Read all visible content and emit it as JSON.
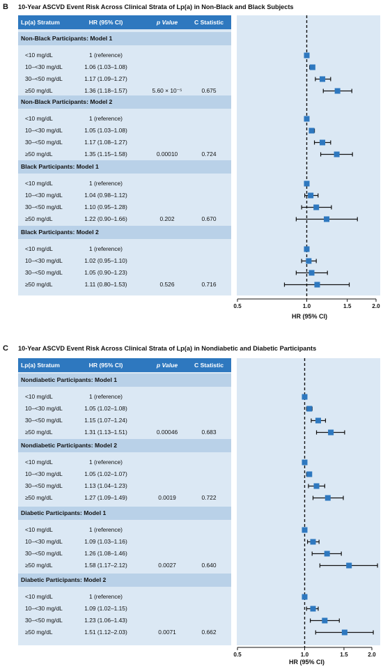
{
  "panels": [
    {
      "letter": "B",
      "title": "10-Year ASCVD Event Risk Across Clinical Strata of Lp(a) in Non-Black and Black Subjects",
      "headers": {
        "stratum": "Lp(a) Stratum",
        "hr": "HR (95% CI)",
        "p": "p Value",
        "c": "C Statistic"
      },
      "groups": [
        {
          "name": "Non-Black Participants: Model 1",
          "rows": [
            {
              "stratum": "<10 mg/dL",
              "hr_text": "1 (reference)",
              "p": "",
              "c": ""
            },
            {
              "stratum": "10–<30 mg/dL",
              "hr_text": "1.06 (1.03–1.08)",
              "p": "",
              "c": ""
            },
            {
              "stratum": "30–<50 mg/dL",
              "hr_text": "1.17 (1.09–1.27)",
              "p": "",
              "c": ""
            },
            {
              "stratum": "≥50 mg/dL",
              "hr_text": "1.36 (1.18–1.57)",
              "p": "5.60 × 10⁻⁵",
              "c": "0.675"
            }
          ]
        },
        {
          "name": "Non-Black Participants: Model 2",
          "rows": [
            {
              "stratum": "<10 mg/dL",
              "hr_text": "1 (reference)",
              "p": "",
              "c": ""
            },
            {
              "stratum": "10–<30 mg/dL",
              "hr_text": "1.05 (1.03–1.08)",
              "p": "",
              "c": ""
            },
            {
              "stratum": "30–<50 mg/dL",
              "hr_text": "1.17 (1.08–1.27)",
              "p": "",
              "c": ""
            },
            {
              "stratum": "≥50 mg/dL",
              "hr_text": "1.35 (1.15–1.58)",
              "p": "0.00010",
              "c": "0.724"
            }
          ]
        },
        {
          "name": "Black Participants: Model 1",
          "rows": [
            {
              "stratum": "<10 mg/dL",
              "hr_text": "1 (reference)",
              "p": "",
              "c": ""
            },
            {
              "stratum": "10–<30 mg/dL",
              "hr_text": "1.04 (0.98–1.12)",
              "p": "",
              "c": ""
            },
            {
              "stratum": "30–<50 mg/dL",
              "hr_text": "1.10 (0.95–1.28)",
              "p": "",
              "c": ""
            },
            {
              "stratum": "≥50 mg/dL",
              "hr_text": "1.22 (0.90–1.66)",
              "p": "0.202",
              "c": "0.670"
            }
          ]
        },
        {
          "name": "Black Participants: Model 2",
          "rows": [
            {
              "stratum": "<10 mg/dL",
              "hr_text": "1 (reference)",
              "p": "",
              "c": ""
            },
            {
              "stratum": "10–<30 mg/dL",
              "hr_text": "1.02 (0.95–1.10)",
              "p": "",
              "c": ""
            },
            {
              "stratum": "30–<50 mg/dL",
              "hr_text": "1.05 (0.90–1.23)",
              "p": "",
              "c": ""
            },
            {
              "stratum": "≥50 mg/dL",
              "hr_text": "1.11 (0.80–1.53)",
              "p": "0.526",
              "c": "0.716"
            }
          ]
        }
      ],
      "x_ticks": [
        "0.5",
        "1.0",
        "1.5",
        "2.0"
      ],
      "x_label": "HR (95% CI)"
    },
    {
      "letter": "C",
      "title": "10-Year ASCVD Event Risk Across Clinical Strata of Lp(a) in Nondiabetic and Diabetic Participants",
      "headers": {
        "stratum": "Lp(a) Stratum",
        "hr": "HR (95% CI)",
        "p": "p Value",
        "c": "C Statistic"
      },
      "groups": [
        {
          "name": "Nondiabetic Participants: Model 1",
          "rows": [
            {
              "stratum": "<10 mg/dL",
              "hr_text": "1 (reference)",
              "p": "",
              "c": ""
            },
            {
              "stratum": "10–<30 mg/dL",
              "hr_text": "1.05 (1.02–1.08)",
              "p": "",
              "c": ""
            },
            {
              "stratum": "30–<50 mg/dL",
              "hr_text": "1.15 (1.07–1.24)",
              "p": "",
              "c": ""
            },
            {
              "stratum": "≥50 mg/dL",
              "hr_text": "1.31 (1.13–1.51)",
              "p": "0.00046",
              "c": "0.683"
            }
          ]
        },
        {
          "name": "Nondiabetic Participants: Model 2",
          "rows": [
            {
              "stratum": "<10 mg/dL",
              "hr_text": "1 (reference)",
              "p": "",
              "c": ""
            },
            {
              "stratum": "10–<30 mg/dL",
              "hr_text": "1.05 (1.02–1.07)",
              "p": "",
              "c": ""
            },
            {
              "stratum": "30–<50 mg/dL",
              "hr_text": "1.13 (1.04–1.23)",
              "p": "",
              "c": ""
            },
            {
              "stratum": "≥50 mg/dL",
              "hr_text": "1.27 (1.09–1.49)",
              "p": "0.0019",
              "c": "0.722"
            }
          ]
        },
        {
          "name": "Diabetic Participants: Model 1",
          "rows": [
            {
              "stratum": "<10 mg/dL",
              "hr_text": "1 (reference)",
              "p": "",
              "c": ""
            },
            {
              "stratum": "10–<30 mg/dL",
              "hr_text": "1.09 (1.03–1.16)",
              "p": "",
              "c": ""
            },
            {
              "stratum": "30–<50 mg/dL",
              "hr_text": "1.26 (1.08–1.46)",
              "p": "",
              "c": ""
            },
            {
              "stratum": "≥50 mg/dL",
              "hr_text": "1.58 (1.17–2.12)",
              "p": "0.0027",
              "c": "0.640"
            }
          ]
        },
        {
          "name": "Diabetic Participants: Model 2",
          "rows": [
            {
              "stratum": "<10 mg/dL",
              "hr_text": "1 (reference)",
              "p": "",
              "c": ""
            },
            {
              "stratum": "10–<30 mg/dL",
              "hr_text": "1.09 (1.02–1.15)",
              "p": "",
              "c": ""
            },
            {
              "stratum": "30–<50 mg/dL",
              "hr_text": "1.23 (1.06–1.43)",
              "p": "",
              "c": ""
            },
            {
              "stratum": "≥50 mg/dL",
              "hr_text": "1.51 (1.12–2.03)",
              "p": "0.0071",
              "c": "0.662"
            }
          ]
        }
      ],
      "x_ticks": [
        "0.5",
        "1.0",
        "1.5",
        "2.0"
      ],
      "x_label": "HR (95% CI)"
    }
  ],
  "chart_data": [
    {
      "type": "scatter",
      "title": "10-Year ASCVD Event Risk Across Clinical Strata of Lp(a) in Non-Black and Black Subjects",
      "xlabel": "HR (95% CI)",
      "xscale": "log",
      "xlim": [
        0.5,
        2.0
      ],
      "xticks": [
        0.5,
        1.0,
        1.5,
        2.0
      ],
      "reference_line": 1.0,
      "series": [
        {
          "name": "Non-Black Participants: Model 1",
          "hr": [
            1.0,
            1.06,
            1.17,
            1.36
          ],
          "lower": [
            1.0,
            1.03,
            1.09,
            1.18
          ],
          "upper": [
            1.0,
            1.08,
            1.27,
            1.57
          ]
        },
        {
          "name": "Non-Black Participants: Model 2",
          "hr": [
            1.0,
            1.05,
            1.17,
            1.35
          ],
          "lower": [
            1.0,
            1.03,
            1.08,
            1.15
          ],
          "upper": [
            1.0,
            1.08,
            1.27,
            1.58
          ]
        },
        {
          "name": "Black Participants: Model 1",
          "hr": [
            1.0,
            1.04,
            1.1,
            1.22
          ],
          "lower": [
            1.0,
            0.98,
            0.95,
            0.9
          ],
          "upper": [
            1.0,
            1.12,
            1.28,
            1.66
          ]
        },
        {
          "name": "Black Participants: Model 2",
          "hr": [
            1.0,
            1.02,
            1.05,
            1.11
          ],
          "lower": [
            1.0,
            0.95,
            0.9,
            0.8
          ],
          "upper": [
            1.0,
            1.1,
            1.23,
            1.53
          ]
        }
      ],
      "categories": [
        "<10 mg/dL",
        "10–<30 mg/dL",
        "30–<50 mg/dL",
        "≥50 mg/dL"
      ],
      "marker_color": "#2e78bf"
    },
    {
      "type": "scatter",
      "title": "10-Year ASCVD Event Risk Across Clinical Strata of Lp(a) in Nondiabetic and Diabetic Participants",
      "xlabel": "HR (95% CI)",
      "xscale": "log",
      "xlim": [
        0.5,
        2.0
      ],
      "xticks": [
        0.5,
        1.0,
        1.5,
        2.0
      ],
      "reference_line": 1.0,
      "series": [
        {
          "name": "Nondiabetic Participants: Model 1",
          "hr": [
            1.0,
            1.05,
            1.15,
            1.31
          ],
          "lower": [
            1.0,
            1.02,
            1.07,
            1.13
          ],
          "upper": [
            1.0,
            1.08,
            1.24,
            1.51
          ]
        },
        {
          "name": "Nondiabetic Participants: Model 2",
          "hr": [
            1.0,
            1.05,
            1.13,
            1.27
          ],
          "lower": [
            1.0,
            1.02,
            1.04,
            1.09
          ],
          "upper": [
            1.0,
            1.07,
            1.23,
            1.49
          ]
        },
        {
          "name": "Diabetic Participants: Model 1",
          "hr": [
            1.0,
            1.09,
            1.26,
            1.58
          ],
          "lower": [
            1.0,
            1.03,
            1.08,
            1.17
          ],
          "upper": [
            1.0,
            1.16,
            1.46,
            2.12
          ]
        },
        {
          "name": "Diabetic Participants: Model 2",
          "hr": [
            1.0,
            1.09,
            1.23,
            1.51
          ],
          "lower": [
            1.0,
            1.02,
            1.06,
            1.12
          ],
          "upper": [
            1.0,
            1.15,
            1.43,
            2.03
          ]
        }
      ],
      "categories": [
        "<10 mg/dL",
        "10–<30 mg/dL",
        "30–<50 mg/dL",
        "≥50 mg/dL"
      ],
      "marker_color": "#2e78bf"
    }
  ]
}
